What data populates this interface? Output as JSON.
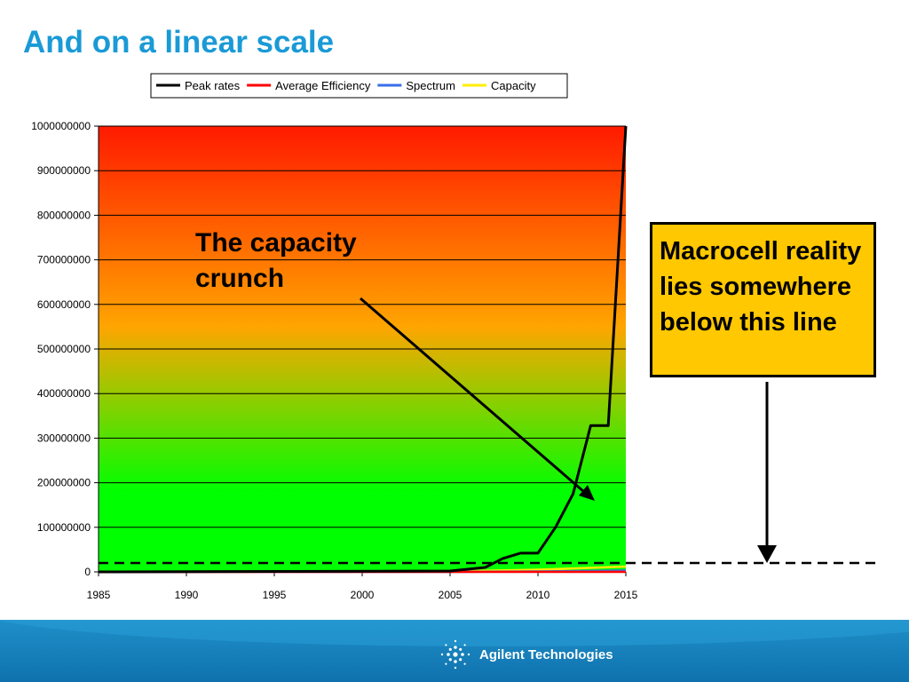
{
  "slide": {
    "title": "And on a linear scale",
    "annotation": [
      "The capacity",
      "crunch"
    ],
    "callout": "Macrocell reality lies somewhere below this line",
    "brand": "Agilent Technologies"
  },
  "colors": {
    "title": "#1a9ad6",
    "callout_bg": "#ffc800",
    "plot_top": "#ff1a00",
    "plot_mid": "#ffa500",
    "plot_bottom": "#00ff00",
    "footer": "#1f8fc9"
  },
  "chart_data": {
    "type": "line",
    "title": "",
    "xlabel": "",
    "ylabel": "",
    "xlim": [
      1985,
      2015
    ],
    "ylim": [
      0,
      1000000000
    ],
    "x_ticks": [
      "1985",
      "1990",
      "1995",
      "2000",
      "2005",
      "2010",
      "2015"
    ],
    "y_ticks": [
      "0",
      "100000000",
      "200000000",
      "300000000",
      "400000000",
      "500000000",
      "600000000",
      "700000000",
      "800000000",
      "900000000",
      "1000000000"
    ],
    "grid": true,
    "legend_position": "top",
    "legend": [
      "Peak rates",
      "Average Efficiency",
      "Spectrum",
      "Capacity"
    ],
    "series": [
      {
        "name": "Peak rates",
        "color": "#000000",
        "x": [
          1985,
          2005,
          2007,
          2008,
          2009,
          2010,
          2011,
          2012,
          2013,
          2014,
          2015
        ],
        "y": [
          0,
          2000000,
          10000000,
          30000000,
          42000000,
          42000000,
          100000000,
          175000000,
          328000000,
          328000000,
          1000000000
        ]
      },
      {
        "name": "Average Efficiency",
        "color": "#ff0000",
        "x": [
          1985,
          2015
        ],
        "y": [
          0,
          0
        ]
      },
      {
        "name": "Spectrum",
        "color": "#3a6ee8",
        "x": [
          1985,
          2005,
          2010,
          2015
        ],
        "y": [
          0,
          0,
          1000000,
          3000000
        ]
      },
      {
        "name": "Capacity",
        "color": "#ffee00",
        "x": [
          1985,
          2005,
          2010,
          2015
        ],
        "y": [
          0,
          1000000,
          5000000,
          12000000
        ]
      }
    ],
    "reference_line": {
      "y": 20000000,
      "style": "dashed"
    }
  }
}
